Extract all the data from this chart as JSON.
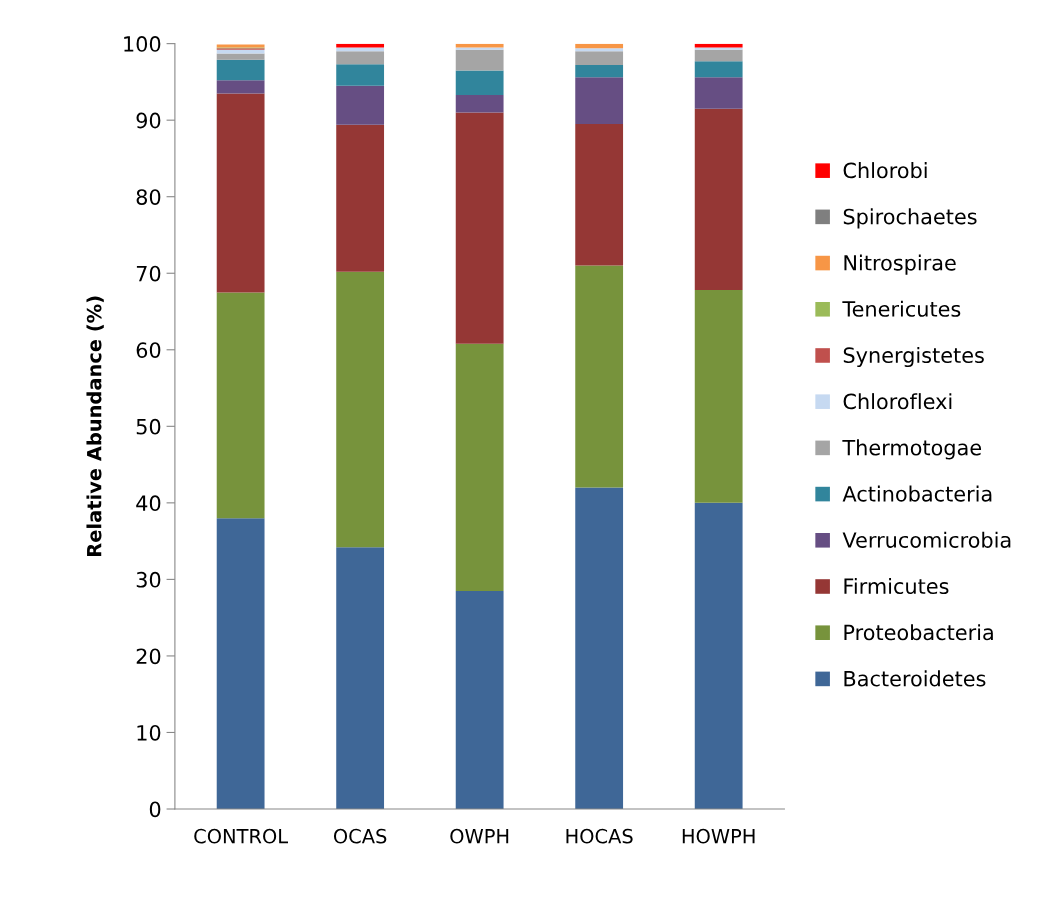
{
  "chart_data": {
    "type": "bar",
    "stacked": true,
    "ylabel": "Relative Abundance (%)",
    "categories": [
      "CONTROL",
      "OCAS",
      "OWPH",
      "HOCAS",
      "HOWPH"
    ],
    "ylim": [
      0,
      100
    ],
    "yticks": [
      0,
      10,
      20,
      30,
      40,
      50,
      60,
      70,
      80,
      90,
      100
    ],
    "grid": false,
    "legend": "right",
    "series": [
      {
        "name": "Bacteroidetes",
        "color": "#3f6797",
        "values": [
          38,
          34.2,
          28.5,
          42,
          40
        ]
      },
      {
        "name": "Proteobacteria",
        "color": "#77933c",
        "values": [
          29.5,
          36,
          32.3,
          29,
          27.8
        ]
      },
      {
        "name": "Firmicutes",
        "color": "#953735",
        "values": [
          26,
          19.2,
          30.2,
          18.5,
          23.7
        ]
      },
      {
        "name": "Verrucomicrobia",
        "color": "#664e83",
        "values": [
          1.7,
          5.1,
          2.3,
          6.1,
          4.1
        ]
      },
      {
        "name": "Actinobacteria",
        "color": "#31859c",
        "values": [
          2.7,
          2.8,
          3.2,
          1.6,
          2.1
        ]
      },
      {
        "name": "Thermotogae",
        "color": "#a5a5a5",
        "values": [
          0.8,
          1.7,
          2.7,
          1.8,
          1.5
        ]
      },
      {
        "name": "Chloroflexi",
        "color": "#c6d9f1",
        "values": [
          0.5,
          0.5,
          0.3,
          0.4,
          0.3
        ]
      },
      {
        "name": "Synergistetes",
        "color": "#c0504d",
        "values": [
          0.2,
          0,
          0,
          0,
          0
        ]
      },
      {
        "name": "Tenericutes",
        "color": "#9bbb59",
        "values": [
          0.1,
          0,
          0,
          0,
          0
        ]
      },
      {
        "name": "Nitrospirae",
        "color": "#f79646",
        "values": [
          0.4,
          0,
          0.5,
          0.6,
          0
        ]
      },
      {
        "name": "Spirochaetes",
        "color": "#7f7f7f",
        "values": [
          null,
          0,
          0,
          0,
          0
        ]
      },
      {
        "name": "Chlorobi",
        "color": "#ff0000",
        "values": [
          0,
          0.5,
          0,
          0,
          0.5
        ]
      }
    ]
  }
}
